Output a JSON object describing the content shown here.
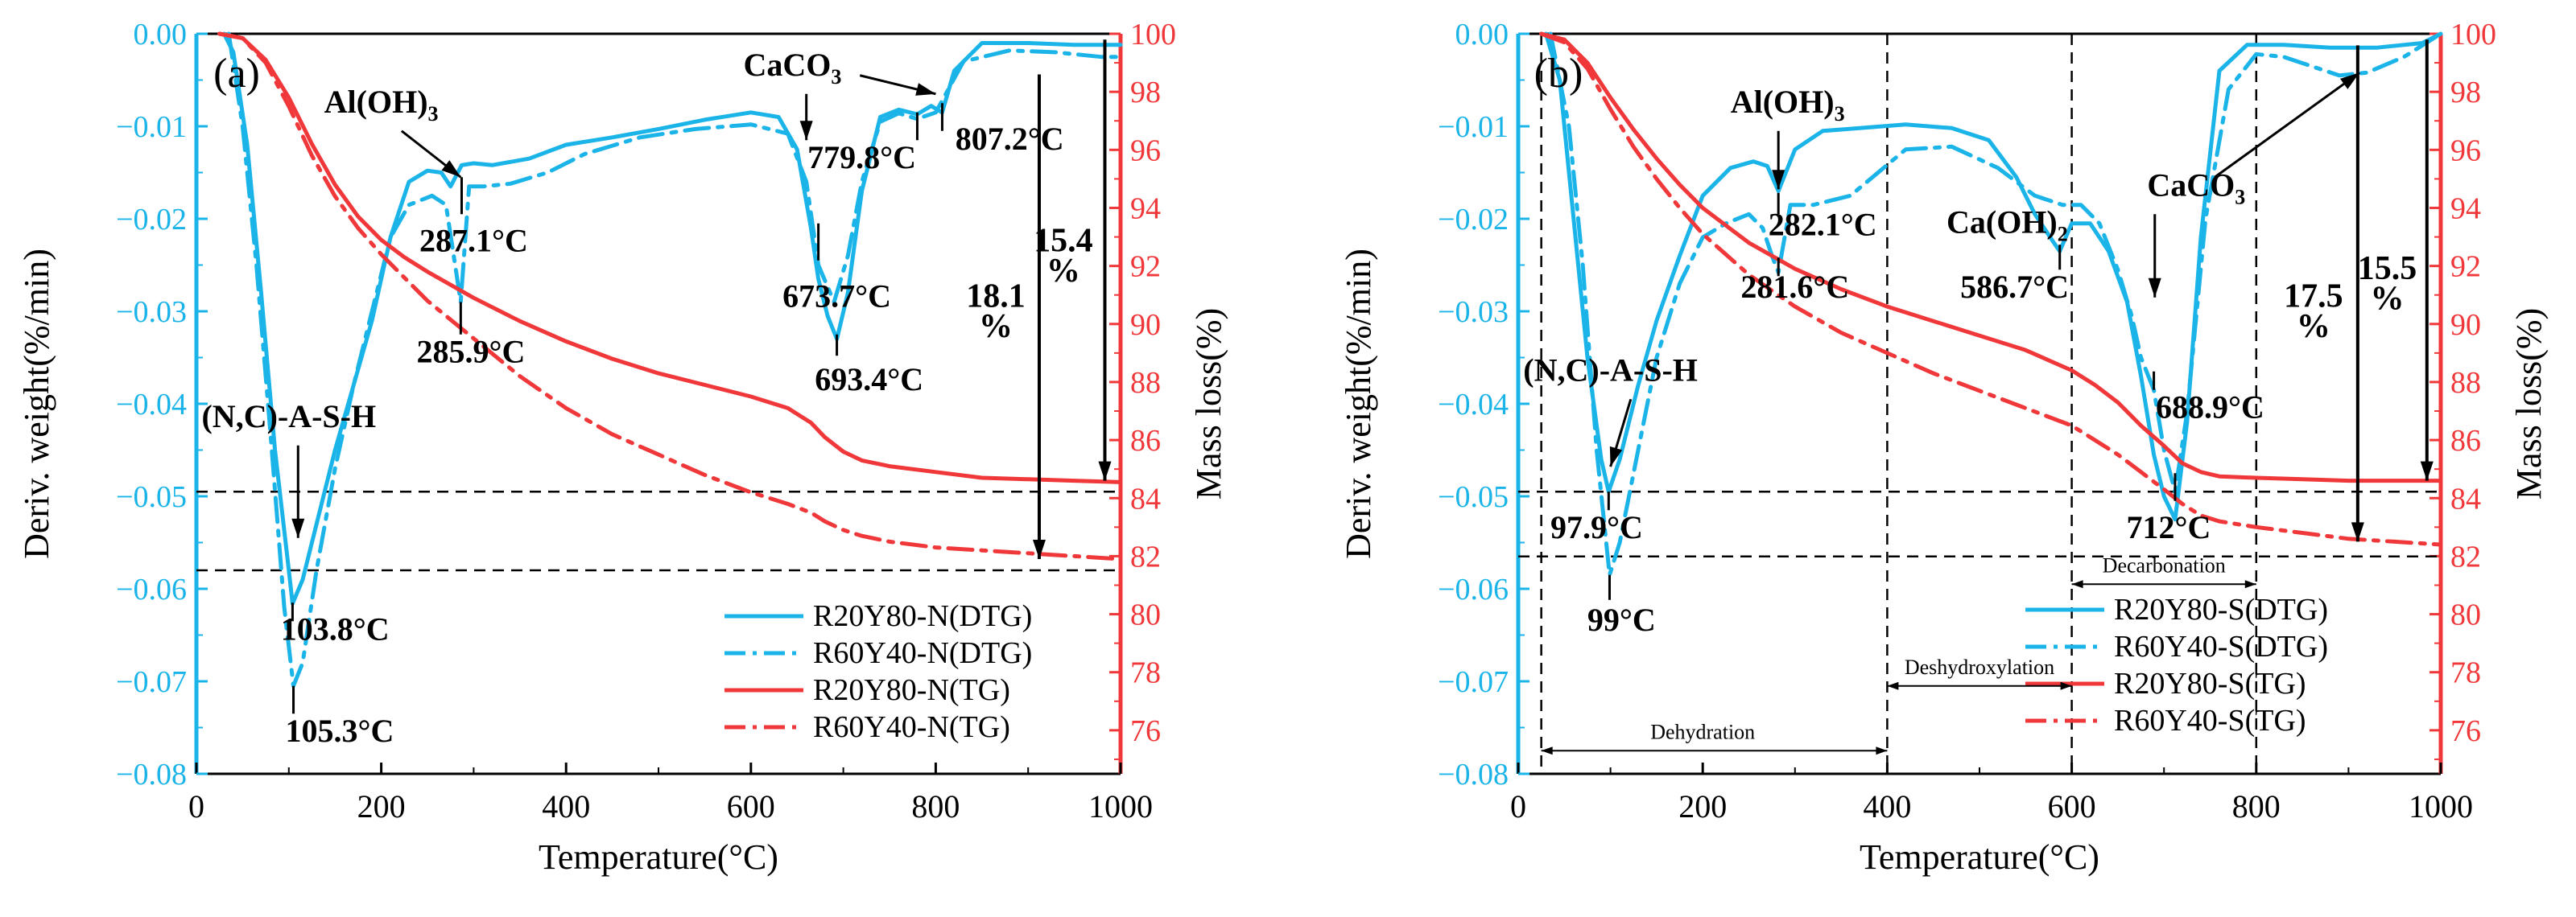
{
  "colors": {
    "dtg": "#1BB4E9",
    "tg": "#F0383A",
    "axis": "#000000"
  },
  "shared": {
    "xlabel": "Temperature(°C)",
    "ylabel_left": "Deriv. weight(%/min)",
    "ylabel_right": "Mass loss(%)",
    "xlim": [
      0,
      1000
    ],
    "ylim_left": [
      -0.08,
      0.0
    ],
    "ylim_right": [
      74.5,
      100
    ],
    "x_ticks": [
      "0",
      "200",
      "400",
      "600",
      "800",
      "1000"
    ],
    "left_ticks": [
      "0.00",
      "−0.01",
      "−0.02",
      "−0.03",
      "−0.04",
      "−0.05",
      "−0.06",
      "−0.07",
      "−0.08"
    ],
    "right_ticks": [
      "100",
      "98",
      "96",
      "94",
      "92",
      "90",
      "88",
      "86",
      "84",
      "82",
      "80",
      "78",
      "76"
    ]
  },
  "chart_data": [
    {
      "type": "line",
      "panel_label": "(a)",
      "series": [
        {
          "name": "R20Y80-N(DTG)",
          "axis": "left",
          "style": "solid",
          "x": [
            30,
            40,
            55,
            70,
            85,
            100,
            104,
            115,
            130,
            150,
            170,
            190,
            210,
            230,
            250,
            265,
            275,
            287,
            300,
            320,
            360,
            400,
            450,
            500,
            550,
            600,
            630,
            650,
            665,
            673,
            683,
            693,
            705,
            720,
            740,
            760,
            780,
            795,
            807,
            820,
            850,
            900,
            950,
            1000
          ],
          "y": [
            0,
            -0.002,
            -0.012,
            -0.028,
            -0.045,
            -0.058,
            -0.0616,
            -0.059,
            -0.053,
            -0.045,
            -0.038,
            -0.031,
            -0.022,
            -0.016,
            -0.0148,
            -0.015,
            -0.0165,
            -0.0142,
            -0.014,
            -0.0142,
            -0.0135,
            -0.012,
            -0.0112,
            -0.0103,
            -0.0093,
            -0.0085,
            -0.009,
            -0.0125,
            -0.021,
            -0.0265,
            -0.0305,
            -0.033,
            -0.028,
            -0.017,
            -0.009,
            -0.0082,
            -0.0087,
            -0.0078,
            -0.0085,
            -0.004,
            -0.001,
            -0.001,
            -0.0012,
            -0.0012
          ]
        },
        {
          "name": "R60Y40-N(DTG)",
          "axis": "left",
          "style": "dashdot",
          "x": [
            35,
            50,
            65,
            80,
            95,
            105,
            115,
            130,
            150,
            170,
            190,
            210,
            230,
            255,
            270,
            280,
            286,
            295,
            310,
            340,
            380,
            420,
            480,
            540,
            600,
            640,
            660,
            673,
            690,
            705,
            720,
            740,
            760,
            780,
            800,
            830,
            880,
            930,
            980,
            1000
          ],
          "y": [
            0,
            -0.01,
            -0.025,
            -0.043,
            -0.062,
            -0.0705,
            -0.068,
            -0.058,
            -0.047,
            -0.038,
            -0.03,
            -0.022,
            -0.0185,
            -0.0175,
            -0.0185,
            -0.025,
            -0.029,
            -0.0165,
            -0.0165,
            -0.0162,
            -0.015,
            -0.013,
            -0.0112,
            -0.0103,
            -0.0098,
            -0.0108,
            -0.016,
            -0.025,
            -0.029,
            -0.024,
            -0.016,
            -0.0095,
            -0.0086,
            -0.0092,
            -0.0085,
            -0.003,
            -0.0018,
            -0.002,
            -0.0025,
            -0.0025
          ]
        },
        {
          "name": "R20Y80-N(TG)",
          "axis": "right",
          "style": "solid",
          "x": [
            25,
            50,
            75,
            100,
            125,
            150,
            175,
            200,
            225,
            250,
            300,
            350,
            400,
            450,
            500,
            550,
            600,
            640,
            665,
            680,
            700,
            720,
            750,
            800,
            850,
            900,
            950,
            1000
          ],
          "y": [
            100,
            99.85,
            99.1,
            97.8,
            96.2,
            94.8,
            93.7,
            92.9,
            92.3,
            91.8,
            90.9,
            90.1,
            89.4,
            88.8,
            88.3,
            87.9,
            87.5,
            87.1,
            86.6,
            86.1,
            85.6,
            85.3,
            85.1,
            84.9,
            84.7,
            84.65,
            84.6,
            84.55
          ]
        },
        {
          "name": "R60Y40-N(TG)",
          "axis": "right",
          "style": "dashdot",
          "x": [
            25,
            50,
            75,
            100,
            125,
            150,
            175,
            200,
            225,
            250,
            300,
            350,
            400,
            450,
            500,
            550,
            600,
            640,
            665,
            680,
            700,
            720,
            750,
            800,
            850,
            900,
            950,
            1000
          ],
          "y": [
            100,
            99.85,
            99.0,
            97.5,
            95.8,
            94.4,
            93.3,
            92.4,
            91.6,
            90.8,
            89.5,
            88.2,
            87.1,
            86.2,
            85.5,
            84.8,
            84.2,
            83.8,
            83.5,
            83.2,
            82.9,
            82.7,
            82.5,
            82.3,
            82.2,
            82.1,
            82.0,
            81.9
          ]
        }
      ],
      "hlines_left": [
        -0.0495,
        -0.058
      ],
      "annotations": {
        "al_oh3": "Al(OH)",
        "caco3": "CaCO",
        "nc_ash": "(N,C)-A-S-H",
        "t_287_1": "287.1°C",
        "t_285_9": "285.9°C",
        "t_779_8": "779.8°C",
        "t_807_2": "807.2°C",
        "t_673_7": "673.7°C",
        "t_693_4": "693.4°C",
        "t_103_8": "103.8°C",
        "t_105_3": "105.3°C",
        "loss_18_1": "18.1",
        "loss_15_4": "15.4",
        "percent": "%"
      },
      "legend": [
        "R20Y80-N(DTG)",
        "R60Y40-N(DTG)",
        "R20Y80-N(TG)",
        "R60Y40-N(TG)"
      ]
    },
    {
      "type": "line",
      "panel_label": "(b)",
      "series": [
        {
          "name": "R20Y80-S(DTG)",
          "axis": "left",
          "style": "solid",
          "x": [
            30,
            45,
            60,
            75,
            90,
            98,
            110,
            130,
            150,
            175,
            200,
            230,
            255,
            270,
            282,
            300,
            330,
            370,
            420,
            470,
            510,
            540,
            560,
            580,
            587,
            600,
            620,
            640,
            660,
            675,
            689,
            700,
            712,
            725,
            740,
            760,
            790,
            830,
            880,
            930,
            980,
            1000
          ],
          "y": [
            0,
            -0.005,
            -0.02,
            -0.035,
            -0.046,
            -0.0495,
            -0.046,
            -0.038,
            -0.031,
            -0.024,
            -0.0175,
            -0.0145,
            -0.0138,
            -0.0143,
            -0.017,
            -0.0125,
            -0.0105,
            -0.0102,
            -0.0098,
            -0.0102,
            -0.0115,
            -0.0155,
            -0.0195,
            -0.0225,
            -0.0235,
            -0.0205,
            -0.0205,
            -0.0235,
            -0.029,
            -0.037,
            -0.0455,
            -0.05,
            -0.0525,
            -0.042,
            -0.022,
            -0.004,
            -0.0012,
            -0.0012,
            -0.0015,
            -0.0015,
            -0.001,
            0
          ]
        },
        {
          "name": "R60Y40-S(DTG)",
          "axis": "left",
          "style": "dashdot",
          "x": [
            35,
            55,
            70,
            85,
            99,
            110,
            130,
            150,
            175,
            200,
            225,
            250,
            265,
            275,
            282,
            295,
            320,
            360,
            420,
            470,
            520,
            560,
            590,
            610,
            630,
            650,
            665,
            675,
            689,
            700,
            712,
            725,
            745,
            770,
            800,
            830,
            860,
            890,
            920,
            960,
            1000
          ],
          "y": [
            0,
            -0.01,
            -0.025,
            -0.045,
            -0.0585,
            -0.055,
            -0.045,
            -0.035,
            -0.027,
            -0.022,
            -0.0205,
            -0.0195,
            -0.021,
            -0.024,
            -0.0258,
            -0.0185,
            -0.0185,
            -0.0175,
            -0.0125,
            -0.0122,
            -0.0145,
            -0.0175,
            -0.0185,
            -0.0185,
            -0.0205,
            -0.0255,
            -0.0305,
            -0.035,
            -0.0385,
            -0.045,
            -0.0495,
            -0.041,
            -0.02,
            -0.006,
            -0.0022,
            -0.0025,
            -0.0035,
            -0.0045,
            -0.0042,
            -0.0025,
            0
          ]
        },
        {
          "name": "R20Y80-S(TG)",
          "axis": "right",
          "style": "solid",
          "x": [
            25,
            50,
            75,
            100,
            125,
            150,
            175,
            200,
            250,
            300,
            350,
            400,
            450,
            500,
            550,
            600,
            625,
            650,
            675,
            700,
            720,
            740,
            760,
            800,
            850,
            900,
            950,
            1000
          ],
          "y": [
            100,
            99.8,
            99.0,
            97.8,
            96.7,
            95.7,
            94.8,
            94.0,
            92.8,
            91.9,
            91.2,
            90.6,
            90.1,
            89.6,
            89.1,
            88.4,
            87.9,
            87.3,
            86.5,
            85.8,
            85.2,
            84.9,
            84.75,
            84.7,
            84.65,
            84.6,
            84.6,
            84.6
          ]
        },
        {
          "name": "R60Y40-S(TG)",
          "axis": "right",
          "style": "dashdot",
          "x": [
            25,
            50,
            75,
            100,
            125,
            150,
            175,
            200,
            250,
            300,
            350,
            400,
            450,
            500,
            550,
            600,
            625,
            650,
            675,
            700,
            720,
            740,
            760,
            800,
            850,
            900,
            950,
            1000
          ],
          "y": [
            100,
            99.7,
            98.8,
            97.4,
            96.1,
            95.0,
            94.0,
            93.1,
            91.7,
            90.6,
            89.7,
            89.0,
            88.3,
            87.7,
            87.1,
            86.5,
            86.0,
            85.5,
            84.9,
            84.3,
            83.8,
            83.4,
            83.2,
            83.0,
            82.8,
            82.6,
            82.5,
            82.4
          ]
        }
      ],
      "hlines_left": [
        -0.0495,
        -0.0565
      ],
      "vlines_x": [
        25,
        400,
        600,
        800
      ],
      "annotations": {
        "al_oh3": "Al(OH)",
        "ca_oh2": "Ca(OH)",
        "caco3": "CaCO",
        "nc_ash": "(N,C)-A-S-H",
        "t_282_1": "282.1°C",
        "t_281_6": "281.6°C",
        "t_586_7": "586.7°C",
        "t_688_9": "688.9°C",
        "t_712": "712°C",
        "t_97_9": "97.9°C",
        "t_99": "99°C",
        "loss_17_5": "17.5",
        "loss_15_5": "15.5",
        "percent": "%",
        "decarbonation": "Decarbonation",
        "deshydroxylation": "Deshydroxylation",
        "dehydration": "Dehydration"
      },
      "legend": [
        "R20Y80-S(DTG)",
        "R60Y40-S(DTG)",
        "R20Y80-S(TG)",
        "R60Y40-S(TG)"
      ]
    }
  ]
}
